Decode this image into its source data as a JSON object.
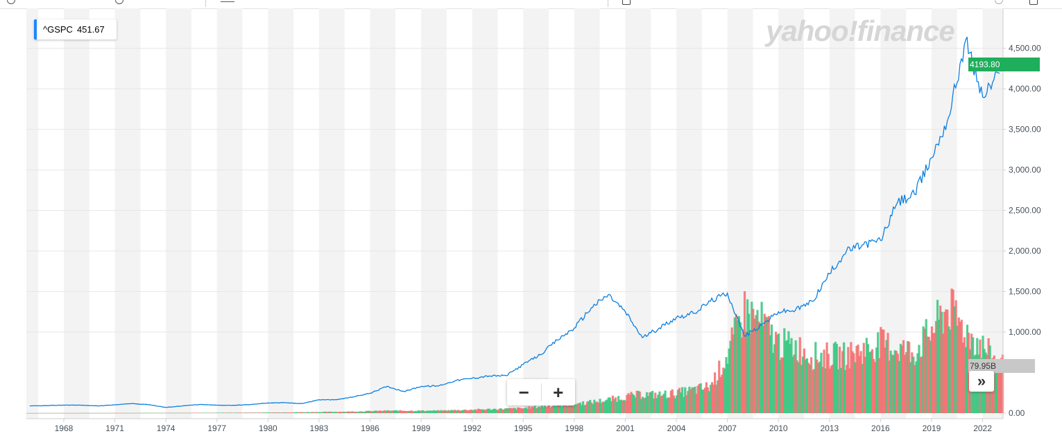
{
  "legend": {
    "symbol": "^GSPC",
    "value": "451.67"
  },
  "logo": "yahoo!finance",
  "current_price": "4193.80",
  "current_volume": "79.95B",
  "zoom": {
    "minus": "−",
    "plus": "+"
  },
  "scroll_label": "»",
  "colors": {
    "line": "#0a7fe0",
    "accent": "#1a88ff",
    "price_badge": "#1fae5b",
    "volume_badge": "#c8c8c8",
    "band": "#f3f3f3",
    "vol_up": "#34c47c",
    "vol_down": "#f26b6b"
  },
  "toolbar_icons": [
    "clock-icon",
    "clock-icon",
    "chart-type-icon",
    "calendar-icon",
    "gear-icon",
    "fullscreen-icon"
  ],
  "chart_data": {
    "type": "line",
    "title": "",
    "xlabel": "",
    "ylabel": "",
    "series": [
      {
        "name": "^GSPC",
        "x": [
          1966,
          1967,
          1968,
          1969,
          1970,
          1971,
          1972,
          1973,
          1974,
          1975,
          1976,
          1977,
          1978,
          1979,
          1980,
          1981,
          1982,
          1983,
          1984,
          1985,
          1986,
          1987,
          1988,
          1989,
          1990,
          1991,
          1992,
          1993,
          1994,
          1995,
          1996,
          1997,
          1998,
          1999,
          2000,
          2001,
          2002,
          2003,
          2004,
          2005,
          2006,
          2007,
          2008,
          2009,
          2010,
          2011,
          2012,
          2013,
          2014,
          2015,
          2016,
          2017,
          2018,
          2019,
          2020,
          2021,
          2022,
          2023
        ],
        "y": [
          88,
          92,
          99,
          98,
          89,
          102,
          118,
          105,
          70,
          90,
          106,
          98,
          96,
          106,
          126,
          128,
          118,
          165,
          164,
          200,
          245,
          330,
          267,
          330,
          335,
          400,
          430,
          458,
          462,
          600,
          720,
          900,
          1050,
          1300,
          1460,
          1250,
          930,
          1050,
          1180,
          1230,
          1380,
          1480,
          950,
          1080,
          1250,
          1270,
          1380,
          1720,
          2000,
          2080,
          2130,
          2600,
          2700,
          3150,
          3650,
          4600,
          3900,
          4193.8
        ]
      }
    ],
    "volume_series": {
      "name": "Volume",
      "x": [
        1966,
        1970,
        1975,
        1980,
        1983,
        1985,
        1987,
        1990,
        1995,
        1997,
        1999,
        2000,
        2001,
        2002,
        2003,
        2004,
        2005,
        2006,
        2007,
        2008,
        2009,
        2010,
        2011,
        2012,
        2014,
        2016,
        2018,
        2020,
        2021,
        2022,
        2023
      ],
      "values_billions": [
        0.1,
        0.2,
        0.4,
        0.9,
        1.8,
        2.5,
        4,
        4,
        8,
        13,
        18,
        22,
        27,
        31,
        30,
        33,
        38,
        44,
        95,
        170,
        150,
        115,
        110,
        95,
        95,
        115,
        100,
        175,
        135,
        110,
        79.95
      ],
      "unit": "B"
    },
    "x_ticks": [
      "1968",
      "1971",
      "1974",
      "1977",
      "1980",
      "1983",
      "1986",
      "1989",
      "1992",
      "1995",
      "1998",
      "2001",
      "2004",
      "2007",
      "2010",
      "2013",
      "2016",
      "2019",
      "2022"
    ],
    "y_ticks": [
      "0.00",
      "1,000.00",
      "1,500.00",
      "2,000.00",
      "2,500.00",
      "3,000.00",
      "3,500.00",
      "4,000.00",
      "4,500.00"
    ],
    "xlim": [
      1965.8,
      2023.2
    ],
    "ylim": [
      0,
      4600
    ],
    "volume_ylim": [
      0,
      340
    ],
    "grid": true,
    "legend": "top-left"
  }
}
